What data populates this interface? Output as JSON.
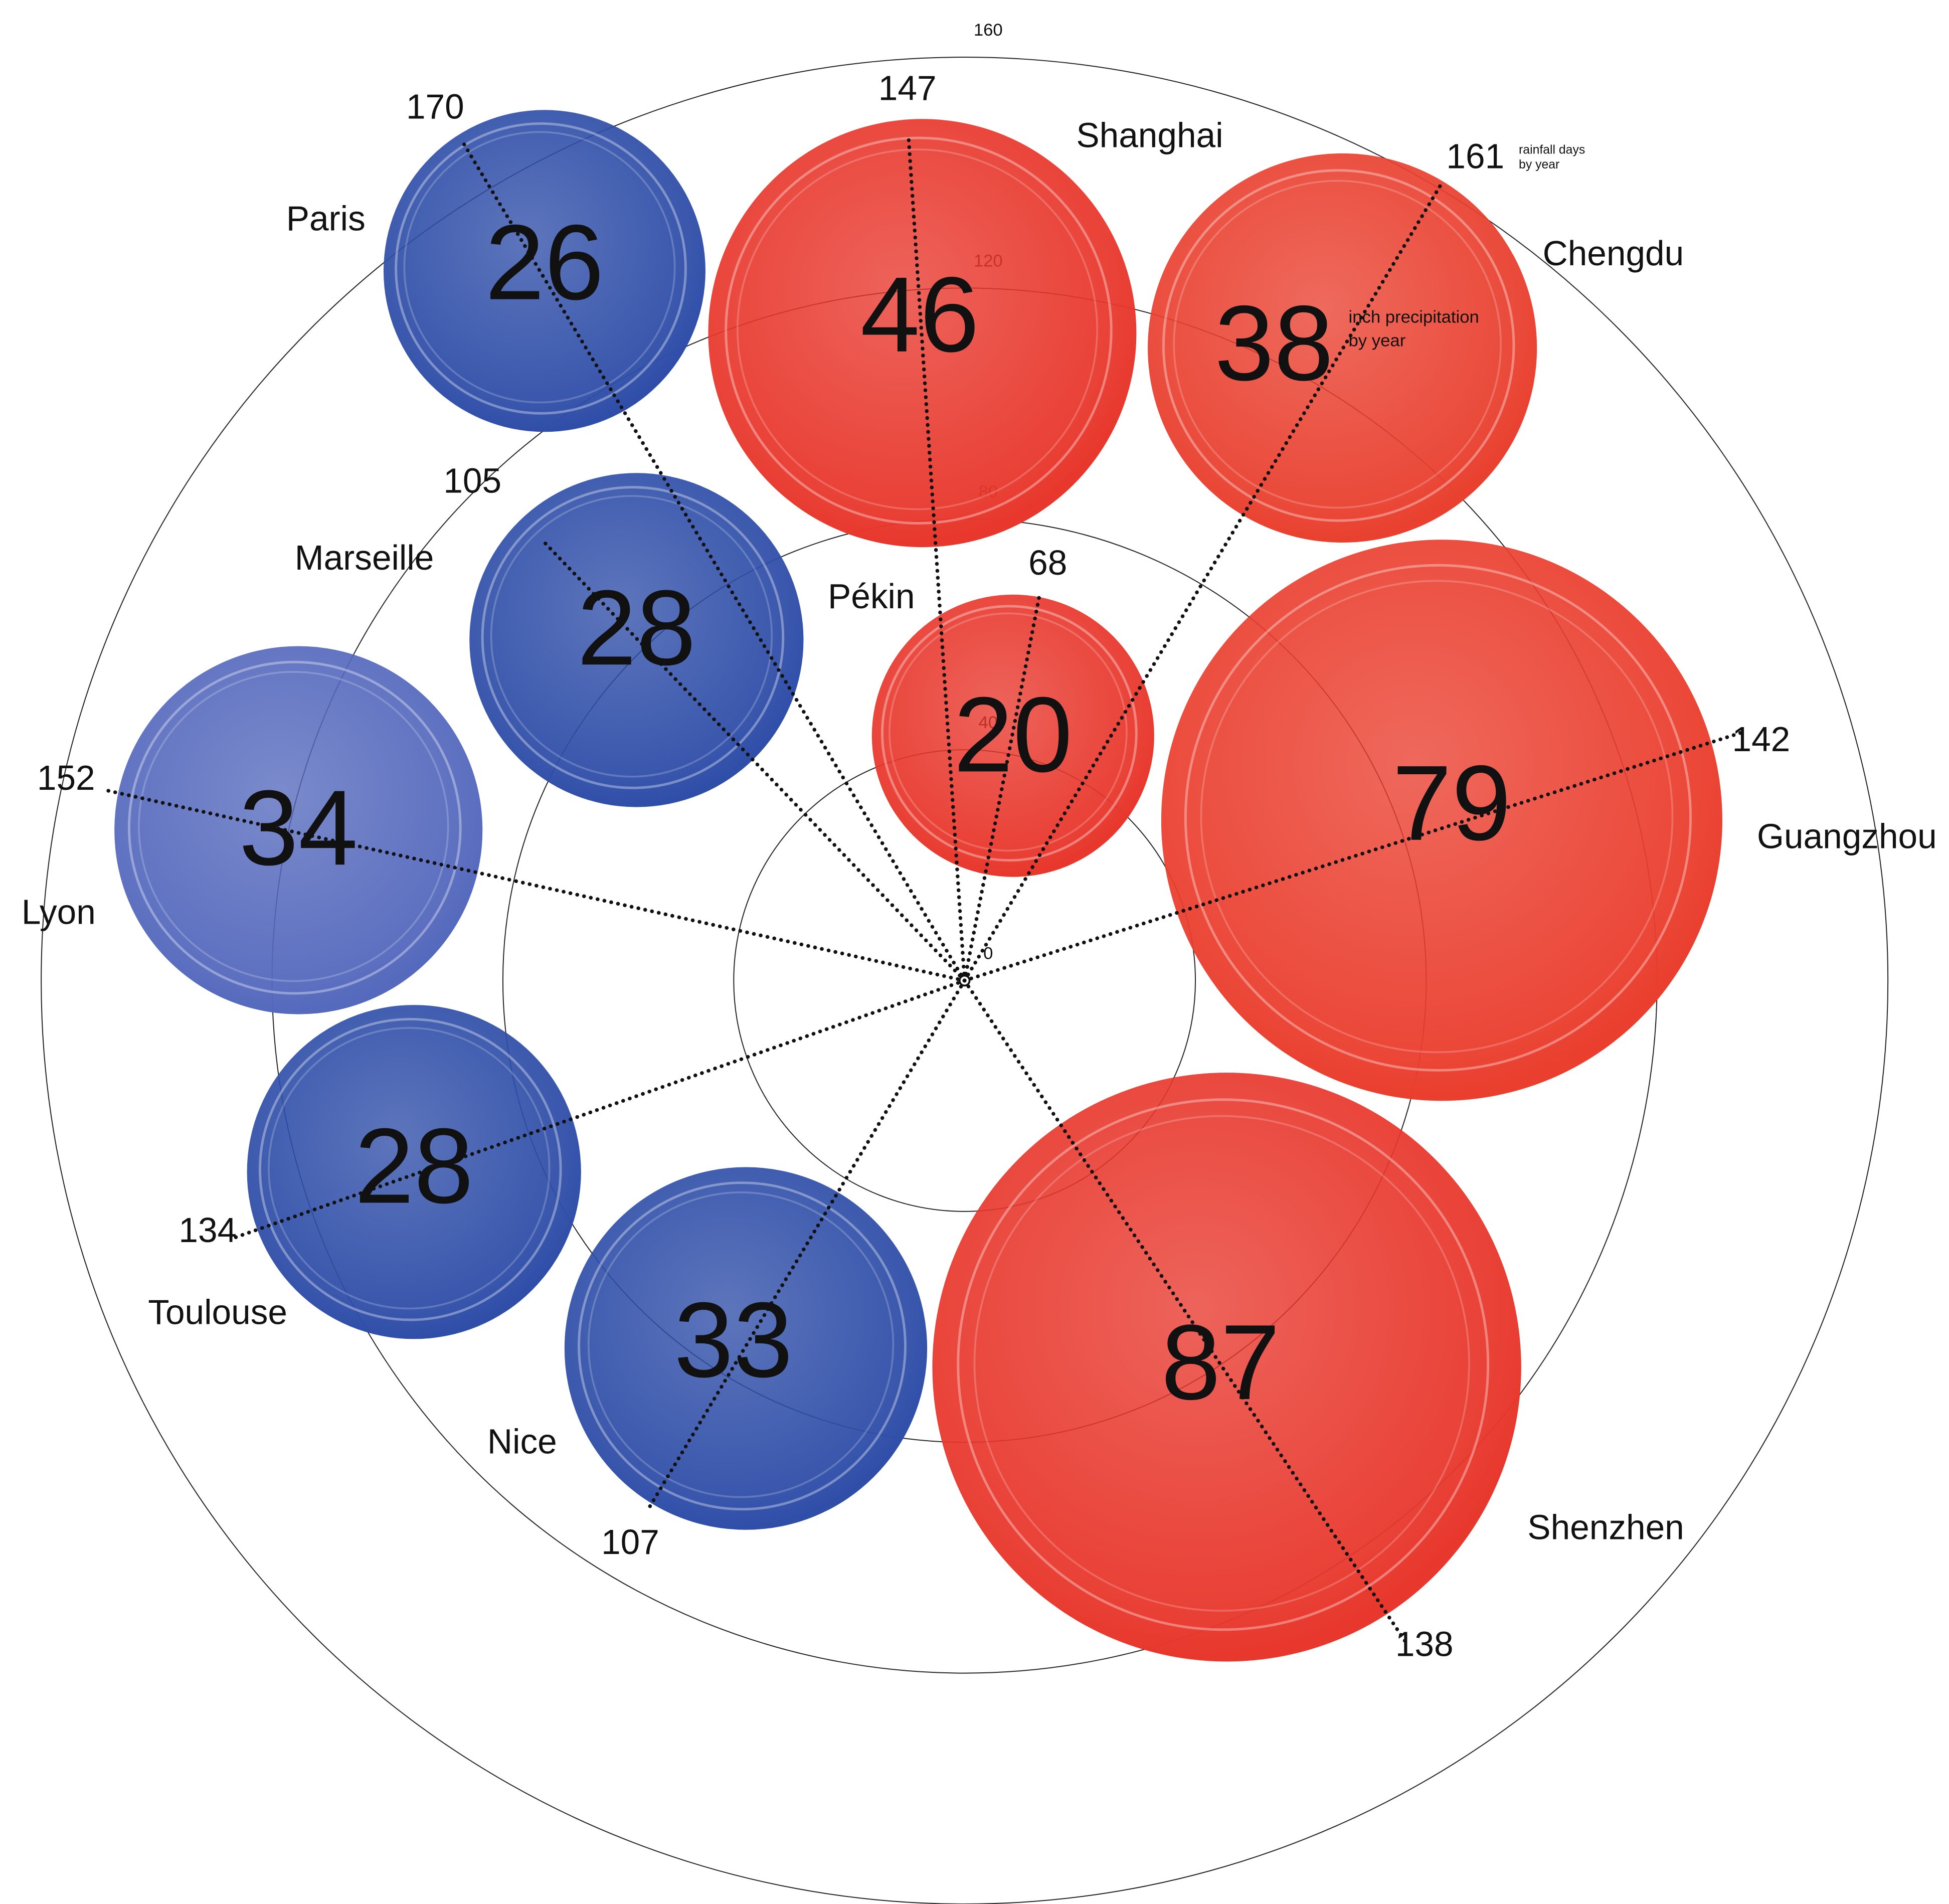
{
  "chart_data": {
    "type": "polar-bubble",
    "categories": [
      "Paris",
      "Shanghai",
      "Chengdu",
      "Marseille",
      "Pékin",
      "Guangzhou",
      "Lyon",
      "Toulouse",
      "Nice",
      "Shenzhen"
    ],
    "precipitation": [
      26,
      46,
      38,
      28,
      20,
      79,
      34,
      28,
      33,
      87
    ],
    "rainfall_days": [
      170,
      147,
      161,
      105,
      68,
      142,
      152,
      134,
      107,
      138
    ],
    "colors": [
      "#2f4ea8",
      "#e8372c",
      "#e9402f",
      "#2f4ea8",
      "#e8372c",
      "#ea3e2e",
      "#5569bd",
      "#2f4ea8",
      "#2f4ea8",
      "#e8372c"
    ],
    "rlim": [
      0,
      160
    ],
    "rticks": [
      0,
      40,
      80,
      120,
      160
    ],
    "precipitation_label": [
      "inch precipitation",
      "by year"
    ],
    "rainfall_days_label": [
      "rainfall days",
      "by year"
    ]
  }
}
